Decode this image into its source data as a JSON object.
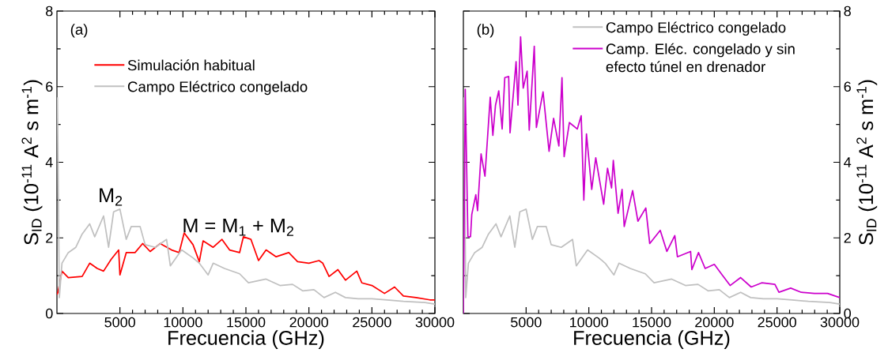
{
  "chart_data": [
    {
      "type": "line",
      "xlabel": "Frecuencia (GHz)",
      "ylabel": "S$_{ID}$ (10$^{-11}$ A$^{2}$ s m$^{-1}$)",
      "xlim": [
        0,
        30000
      ],
      "ylim": [
        0,
        8
      ],
      "xticks": [
        5000,
        10000,
        15000,
        20000,
        25000,
        30000
      ],
      "yticks": [
        0,
        2,
        4,
        6,
        8
      ],
      "legend": "top",
      "line_style": "solid",
      "marker": "none",
      "annotations": [
        "(a)",
        "M$_{2}$",
        "M = M$_{1}$ + M$_{2}$"
      ],
      "series": [
        {
          "name": "Simulación habitual",
          "color": "#ff0000",
          "x": [
            0,
            80,
            400,
            900,
            2000,
            2600,
            3200,
            3700,
            4300,
            4900,
            5000,
            5500,
            6200,
            6800,
            7400,
            8200,
            9100,
            9700,
            10100,
            10800,
            11300,
            11600,
            12400,
            13100,
            13700,
            14500,
            14800,
            15400,
            16000,
            16600,
            17400,
            18400,
            19100,
            20000,
            20800,
            21100,
            21600,
            22300,
            22900,
            23800,
            24200,
            25000,
            26000,
            26800,
            27500,
            28500,
            29600,
            30000
          ],
          "values": [
            0.5,
            0.56,
            1.12,
            0.95,
            0.98,
            1.33,
            1.19,
            1.12,
            1.43,
            1.68,
            1.02,
            1.61,
            1.61,
            1.85,
            1.64,
            1.85,
            1.68,
            1.61,
            2.13,
            1.82,
            1.37,
            1.92,
            1.75,
            1.96,
            1.68,
            1.61,
            2.03,
            1.96,
            1.4,
            1.68,
            1.5,
            1.61,
            1.37,
            1.33,
            1.4,
            1.33,
            0.98,
            1.16,
            0.88,
            1.12,
            0.81,
            0.74,
            0.53,
            0.7,
            0.46,
            0.42,
            0.36,
            0.36
          ]
        },
        {
          "name": "Campo Eléctrico congelado",
          "color": "#c0c0c0",
          "x": [
            40,
            190,
            400,
            900,
            1500,
            2000,
            2600,
            3000,
            3700,
            4100,
            4500,
            5000,
            5500,
            5900,
            6600,
            7000,
            7800,
            8700,
            9000,
            9900,
            10800,
            11300,
            12000,
            12400,
            13300,
            14500,
            15200,
            16600,
            17700,
            18700,
            19500,
            20400,
            21200,
            22100,
            22900,
            23900,
            25000,
            26200,
            27500,
            29200,
            30000
          ],
          "values": [
            5.72,
            0.42,
            1.33,
            1.61,
            1.75,
            2.1,
            2.37,
            2.03,
            2.58,
            1.75,
            2.69,
            2.76,
            1.96,
            2.3,
            2.3,
            1.82,
            1.75,
            1.96,
            1.26,
            1.68,
            1.47,
            1.33,
            1.02,
            1.33,
            1.19,
            1.05,
            0.81,
            0.91,
            0.74,
            0.77,
            0.6,
            0.63,
            0.42,
            0.56,
            0.42,
            0.39,
            0.39,
            0.36,
            0.32,
            0.29,
            0.25
          ]
        }
      ]
    },
    {
      "type": "line",
      "xlabel": "Frecuencia (GHz)",
      "ylabel": "S$_{ID}$ (10$^{-11}$ A$^{2}$ s m$^{-1}$)",
      "xlim": [
        0,
        30000
      ],
      "ylim": [
        0,
        8
      ],
      "xticks": [
        5000,
        10000,
        15000,
        20000,
        25000,
        30000
      ],
      "yticks": [
        0,
        2,
        4,
        6,
        8
      ],
      "legend": "top right",
      "line_style": "solid",
      "marker": "none",
      "annotations": [
        "(b)"
      ],
      "series": [
        {
          "name": "Campo Eléctrico congelado",
          "color": "#c0c0c0",
          "x": [
            40,
            190,
            400,
            900,
            1500,
            2000,
            2600,
            3000,
            3700,
            4100,
            4500,
            5000,
            5500,
            5900,
            6600,
            7000,
            7800,
            8700,
            9000,
            9900,
            10800,
            11300,
            12000,
            12400,
            13300,
            14500,
            15200,
            16600,
            17700,
            18700,
            19500,
            20400,
            21200,
            22100,
            22900,
            23900,
            25000,
            26200,
            27500,
            29200,
            30000
          ],
          "values": [
            5.72,
            0.42,
            1.33,
            1.61,
            1.75,
            2.1,
            2.37,
            2.03,
            2.58,
            1.75,
            2.69,
            2.76,
            1.96,
            2.3,
            2.3,
            1.82,
            1.75,
            1.96,
            1.26,
            1.68,
            1.47,
            1.33,
            1.02,
            1.33,
            1.19,
            1.05,
            0.81,
            0.91,
            0.74,
            0.77,
            0.6,
            0.63,
            0.42,
            0.56,
            0.42,
            0.39,
            0.39,
            0.36,
            0.32,
            0.29,
            0.25
          ]
        },
        {
          "name": "Camp. Eléc. congelado y sin efecto túnel en drenador",
          "color": "#cc00cc",
          "x": [
            0,
            150,
            360,
            570,
            670,
            990,
            1130,
            1410,
            1720,
            2140,
            2350,
            2560,
            2820,
            3090,
            3300,
            3610,
            3720,
            4200,
            4350,
            4560,
            4770,
            5080,
            5250,
            5650,
            5820,
            6350,
            6830,
            7190,
            7610,
            7860,
            8030,
            8450,
            9080,
            9390,
            9600,
            9810,
            10230,
            10550,
            11180,
            11490,
            11810,
            11950,
            12330,
            12650,
            12820,
            13490,
            13910,
            14540,
            14850,
            15690,
            16220,
            16850,
            17060,
            18110,
            18210,
            18740,
            19270,
            20000,
            20630,
            21260,
            22100,
            22940,
            23780,
            24830,
            25150,
            26090,
            26930,
            27980,
            29030,
            30000
          ],
          "values": [
            0,
            5.93,
            2.03,
            2.03,
            2.62,
            3.14,
            2.72,
            4.22,
            3.63,
            5.72,
            4.71,
            5.51,
            5.89,
            4.88,
            6.24,
            6.27,
            4.78,
            6.66,
            5.51,
            7.32,
            5.96,
            6.41,
            4.85,
            7.07,
            4.92,
            5.86,
            4.29,
            5.16,
            4.43,
            6.24,
            4.15,
            5.05,
            4.88,
            5.23,
            3.0,
            4.75,
            3.28,
            4.12,
            2.89,
            3.84,
            3.32,
            4.05,
            2.65,
            3.28,
            2.3,
            3.25,
            2.44,
            2.79,
            1.85,
            2.2,
            1.64,
            2.06,
            1.5,
            1.64,
            1.16,
            1.61,
            1.19,
            1.3,
            1.02,
            0.74,
            0.95,
            0.7,
            0.81,
            0.77,
            0.56,
            0.67,
            0.56,
            0.53,
            0.53,
            0.42
          ]
        }
      ]
    }
  ]
}
